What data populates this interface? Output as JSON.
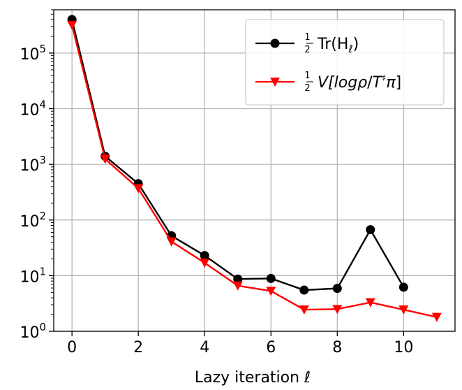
{
  "chart_data": {
    "type": "line",
    "xlabel": "Lazy iteration ℓ",
    "ylabel": "",
    "yscale": "log",
    "xlim": [
      -0.55,
      11.55
    ],
    "ylim": [
      1,
      600000
    ],
    "xticks": [
      0,
      2,
      4,
      6,
      8,
      10
    ],
    "yticks": [
      {
        "value": 1,
        "base": "10",
        "exp": "0"
      },
      {
        "value": 10,
        "base": "10",
        "exp": "1"
      },
      {
        "value": 100,
        "base": "10",
        "exp": "2"
      },
      {
        "value": 1000,
        "base": "10",
        "exp": "3"
      },
      {
        "value": 10000,
        "base": "10",
        "exp": "4"
      },
      {
        "value": 100000,
        "base": "10",
        "exp": "5"
      }
    ],
    "grid": true,
    "legend_position": "top-right",
    "series": [
      {
        "name": "½Tr(H_ℓ)",
        "legend_parts": {
          "frac_num": "1",
          "frac_den": "2",
          "text": "Tr(H",
          "sub": "ℓ",
          "close": ")"
        },
        "color": "#000000",
        "marker": "circle",
        "x": [
          0,
          1,
          2,
          3,
          4,
          5,
          6,
          7,
          8,
          9,
          10
        ],
        "y": [
          400000,
          1400,
          450,
          52,
          23,
          8.7,
          8.9,
          5.5,
          5.9,
          67,
          6.2
        ]
      },
      {
        "name": "½V[logρ/T♯π]",
        "legend_parts": {
          "frac_num": "1",
          "frac_den": "2",
          "text": "V[log",
          "rho": "ρ",
          "slash": "/",
          "T": "T",
          "sharp": "♯",
          "pi": "π",
          "close": "]"
        },
        "color": "#ff0000",
        "marker": "triangle-down",
        "x": [
          0,
          1,
          2,
          3,
          4,
          5,
          6,
          7,
          8,
          9,
          10,
          11
        ],
        "y": [
          320000,
          1250,
          370,
          41,
          17,
          6.6,
          5.3,
          2.45,
          2.5,
          3.3,
          2.45,
          1.8
        ]
      }
    ]
  }
}
